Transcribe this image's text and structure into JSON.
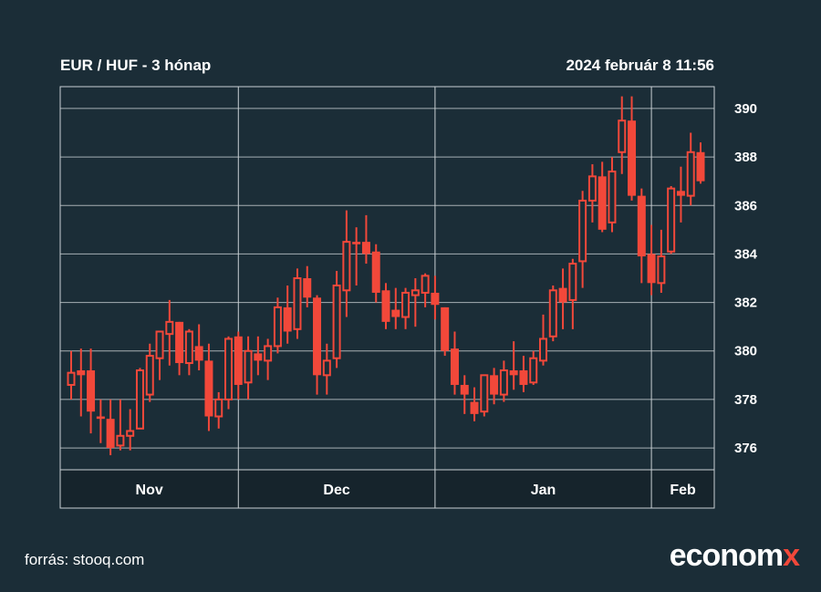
{
  "header": {
    "title": "EUR / HUF - 3 hónap",
    "timestamp": "2024 február 8 11:56"
  },
  "footer": {
    "source": "forrás: stooq.com",
    "logo_main": "econom",
    "logo_x": "x"
  },
  "colors": {
    "background": "#1b2d37",
    "candle": "#f2483a",
    "grid": "#c9d0d4",
    "band": "#16242c"
  },
  "chart_data": {
    "type": "candlestick",
    "title": "EUR / HUF - 3 hónap",
    "ylim": [
      375.1,
      390.9
    ],
    "yticks": [
      376,
      378,
      380,
      382,
      384,
      386,
      388,
      390
    ],
    "ytick_labels": [
      "376",
      "378",
      "380",
      "382",
      "384",
      "386",
      "388",
      "390"
    ],
    "months": [
      {
        "label": "Nov",
        "start_index": 0
      },
      {
        "label": "Dec",
        "start_index": 17
      },
      {
        "label": "Jan",
        "start_index": 37
      },
      {
        "label": "Feb",
        "start_index": 59
      }
    ],
    "ohlc": [
      [
        378.6,
        380.0,
        378.0,
        379.1
      ],
      [
        379.2,
        380.1,
        377.3,
        379.0
      ],
      [
        379.2,
        380.1,
        376.6,
        377.5
      ],
      [
        377.3,
        378.0,
        376.2,
        377.2
      ],
      [
        377.2,
        378.0,
        375.7,
        376.0
      ],
      [
        376.1,
        378.0,
        375.9,
        376.5
      ],
      [
        376.5,
        377.6,
        375.9,
        376.7
      ],
      [
        376.8,
        379.3,
        376.8,
        379.2
      ],
      [
        378.2,
        380.3,
        377.9,
        379.8
      ],
      [
        379.7,
        380.8,
        378.8,
        380.8
      ],
      [
        380.7,
        382.1,
        379.4,
        381.2
      ],
      [
        381.2,
        381.2,
        379.0,
        379.5
      ],
      [
        379.5,
        380.9,
        379.0,
        380.8
      ],
      [
        380.2,
        381.1,
        379.2,
        379.6
      ],
      [
        379.6,
        380.3,
        376.7,
        377.3
      ],
      [
        377.3,
        378.3,
        376.8,
        378.0
      ],
      [
        378.0,
        380.6,
        377.6,
        380.5
      ],
      [
        380.6,
        380.8,
        378.0,
        378.6
      ],
      [
        378.7,
        380.6,
        378.0,
        380.0
      ],
      [
        379.9,
        380.6,
        379.0,
        379.6
      ],
      [
        379.6,
        380.5,
        378.8,
        380.2
      ],
      [
        380.2,
        382.2,
        379.9,
        381.8
      ],
      [
        381.8,
        382.7,
        380.3,
        380.8
      ],
      [
        380.9,
        383.4,
        380.5,
        383.0
      ],
      [
        383.0,
        383.5,
        381.8,
        382.2
      ],
      [
        382.2,
        382.3,
        378.2,
        379.0
      ],
      [
        379.0,
        380.3,
        378.2,
        379.6
      ],
      [
        379.7,
        383.3,
        379.3,
        382.7
      ],
      [
        382.5,
        385.8,
        381.4,
        384.5
      ],
      [
        384.5,
        385.1,
        382.7,
        384.4
      ],
      [
        384.5,
        385.6,
        383.6,
        384.0
      ],
      [
        384.1,
        384.4,
        382.0,
        382.4
      ],
      [
        382.5,
        382.8,
        380.9,
        381.2
      ],
      [
        381.7,
        382.6,
        380.9,
        381.4
      ],
      [
        381.4,
        382.6,
        380.9,
        382.4
      ],
      [
        382.3,
        383.0,
        381.0,
        382.5
      ],
      [
        382.4,
        383.2,
        381.8,
        383.1
      ],
      [
        382.4,
        383.1,
        381.3,
        381.9
      ],
      [
        381.8,
        381.8,
        379.8,
        380.0
      ],
      [
        380.1,
        380.8,
        378.2,
        378.6
      ],
      [
        378.6,
        379.0,
        377.4,
        378.2
      ],
      [
        377.9,
        378.5,
        377.1,
        377.4
      ],
      [
        377.5,
        378.9,
        377.3,
        379.0
      ],
      [
        379.0,
        379.3,
        377.8,
        378.2
      ],
      [
        378.2,
        379.6,
        377.9,
        379.2
      ],
      [
        379.2,
        380.4,
        378.4,
        379.0
      ],
      [
        379.2,
        379.8,
        378.3,
        378.6
      ],
      [
        378.7,
        380.0,
        378.6,
        379.7
      ],
      [
        379.6,
        381.5,
        379.4,
        380.5
      ],
      [
        380.6,
        382.7,
        380.4,
        382.5
      ],
      [
        382.6,
        383.4,
        380.9,
        382.0
      ],
      [
        382.1,
        383.8,
        380.9,
        383.6
      ],
      [
        383.7,
        386.6,
        382.6,
        386.2
      ],
      [
        386.2,
        387.7,
        385.3,
        387.2
      ],
      [
        387.2,
        387.8,
        384.9,
        385.0
      ],
      [
        385.3,
        388.0,
        384.9,
        387.4
      ],
      [
        388.2,
        390.5,
        387.3,
        389.5
      ],
      [
        389.5,
        390.5,
        386.2,
        386.4
      ],
      [
        386.4,
        386.7,
        382.8,
        383.9
      ],
      [
        384.0,
        385.2,
        382.3,
        382.8
      ],
      [
        382.8,
        385.0,
        382.4,
        383.9
      ],
      [
        384.1,
        386.8,
        384.0,
        386.7
      ],
      [
        386.6,
        387.6,
        385.3,
        386.4
      ],
      [
        386.4,
        389.0,
        386.0,
        388.2
      ],
      [
        388.2,
        388.6,
        386.9,
        387.0
      ]
    ]
  }
}
